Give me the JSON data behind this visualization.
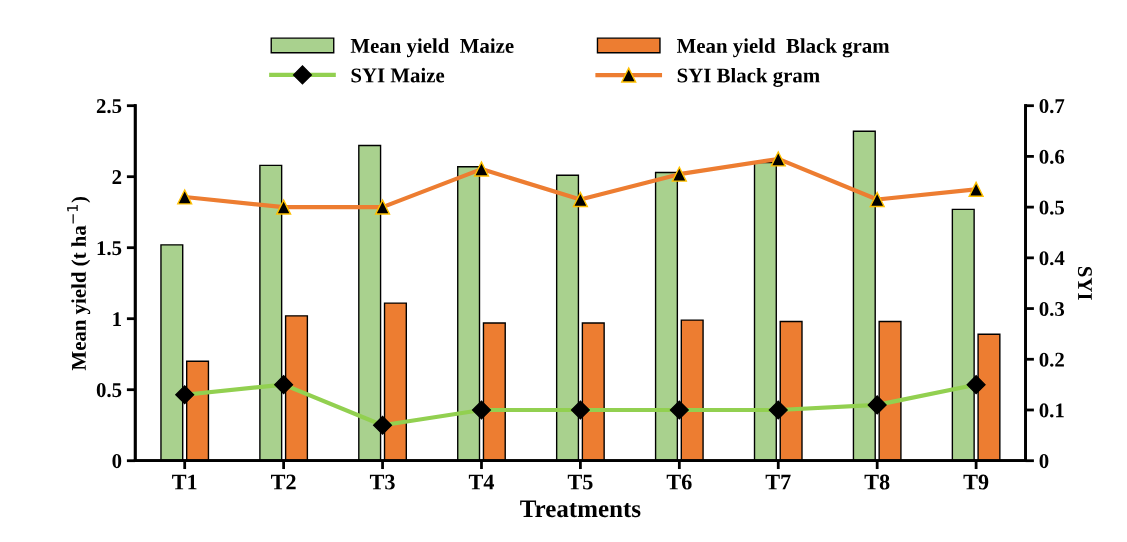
{
  "chart_data": {
    "type": "bar",
    "categories": [
      "T1",
      "T2",
      "T3",
      "T4",
      "T5",
      "T6",
      "T7",
      "T8",
      "T9"
    ],
    "xlabel": "Treatments",
    "ylabel": "Mean yield (t ha$^{−1}$)",
    "y2label": "SYI",
    "series": [
      {
        "name": "Mean yield  Maize",
        "color": "#a9d18e",
        "values": [
          1.52,
          2.08,
          2.22,
          2.07,
          2.01,
          2.03,
          2.1,
          2.32,
          1.77
        ]
      },
      {
        "name": "Mean yield  Black gram",
        "color": "#ed7d31",
        "values": [
          0.7,
          1.02,
          1.11,
          0.97,
          0.97,
          0.99,
          0.98,
          0.98,
          0.89
        ]
      },
      {
        "name": "SYI Maize",
        "type": "line",
        "axis": "y2",
        "color": "#92d050",
        "marker": "diamond",
        "values": [
          0.13,
          0.15,
          0.07,
          0.1,
          0.1,
          0.1,
          0.1,
          0.11,
          0.15
        ]
      },
      {
        "name": "SYI Black gram",
        "type": "line",
        "axis": "y2",
        "color": "#ed7d31",
        "marker": "triangle",
        "values": [
          0.52,
          0.5,
          0.5,
          0.575,
          0.515,
          0.565,
          0.595,
          0.515,
          0.535
        ]
      }
    ],
    "ylim": [
      0,
      2.5
    ],
    "yticks": [
      0,
      0.5,
      1,
      1.5,
      2,
      2.5
    ],
    "y2lim": [
      0,
      0.7
    ],
    "y2ticks": [
      0,
      0.1,
      0.2,
      0.3,
      0.4,
      0.5,
      0.6,
      0.7
    ],
    "legend": "top",
    "grid": false
  }
}
